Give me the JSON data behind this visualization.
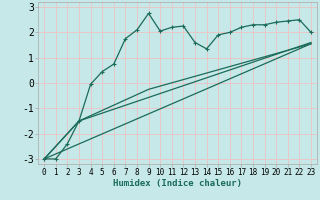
{
  "xlabel": "Humidex (Indice chaleur)",
  "background_color": "#c6e8e8",
  "grid_color": "#e8c8c8",
  "line_color": "#1a6b5a",
  "xlim": [
    -0.5,
    23.5
  ],
  "ylim": [
    -3.2,
    3.2
  ],
  "yticks": [
    -3,
    -2,
    -1,
    0,
    1,
    2,
    3
  ],
  "xticks": [
    0,
    1,
    2,
    3,
    4,
    5,
    6,
    7,
    8,
    9,
    10,
    11,
    12,
    13,
    14,
    15,
    16,
    17,
    18,
    19,
    20,
    21,
    22,
    23
  ],
  "series1_x": [
    0,
    1,
    2,
    3,
    4,
    5,
    6,
    7,
    8,
    9,
    10,
    11,
    12,
    13,
    14,
    15,
    16,
    17,
    18,
    19,
    20,
    21,
    22,
    23
  ],
  "series1_y": [
    -3.0,
    -3.0,
    -2.4,
    -1.5,
    -0.05,
    0.45,
    0.75,
    1.75,
    2.1,
    2.75,
    2.05,
    2.2,
    2.25,
    1.6,
    1.35,
    1.9,
    2.0,
    2.2,
    2.3,
    2.3,
    2.4,
    2.45,
    2.5,
    2.0
  ],
  "series2_x": [
    0,
    3,
    23
  ],
  "series2_y": [
    -3.0,
    -1.5,
    1.6
  ],
  "series3_x": [
    0,
    3,
    9,
    23
  ],
  "series3_y": [
    -3.0,
    -1.5,
    -0.25,
    1.55
  ],
  "series4_x": [
    0,
    23
  ],
  "series4_y": [
    -3.0,
    1.55
  ]
}
